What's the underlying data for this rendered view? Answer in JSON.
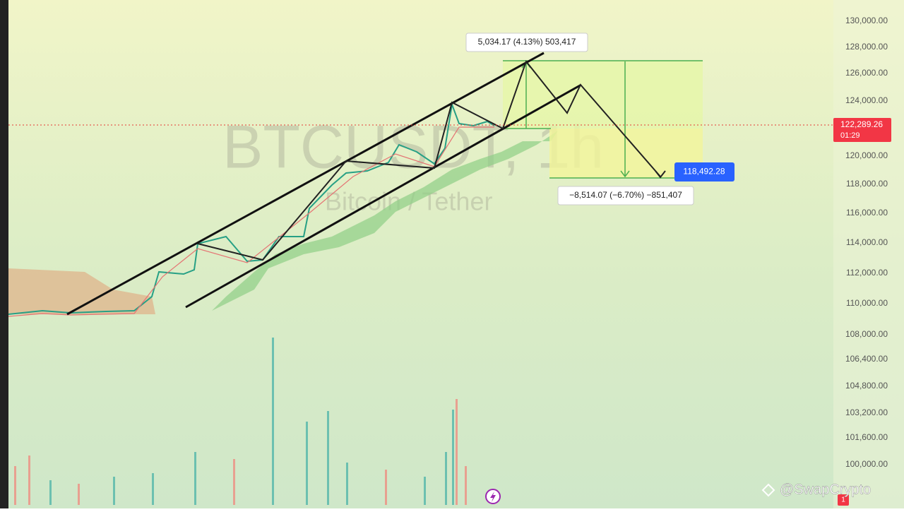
{
  "watermark": {
    "symbol": "BTCUSDT, 1h",
    "description": "Bitcoin / Tether"
  },
  "price_axis": {
    "labels": [
      "130,000.00",
      "128,000.00",
      "126,000.00",
      "124,000.00",
      "120,000.00",
      "118,000.00",
      "116,000.00",
      "114,000.00",
      "112,000.00",
      "110,000.00",
      "108,000.00",
      "106,400.00",
      "104,800.00",
      "103,200.00",
      "101,600.00",
      "100,000.00"
    ]
  },
  "last_price": {
    "price": "122,289.26",
    "countdown": "01:29"
  },
  "target_tag": "118,492.28",
  "measurements": {
    "upper": "5,034.17 (4.13%) 503,417",
    "lower": "−8,514.07 (−6.70%) −851,407"
  },
  "branding": "@SwapCrypto",
  "alert_badge": "1"
}
